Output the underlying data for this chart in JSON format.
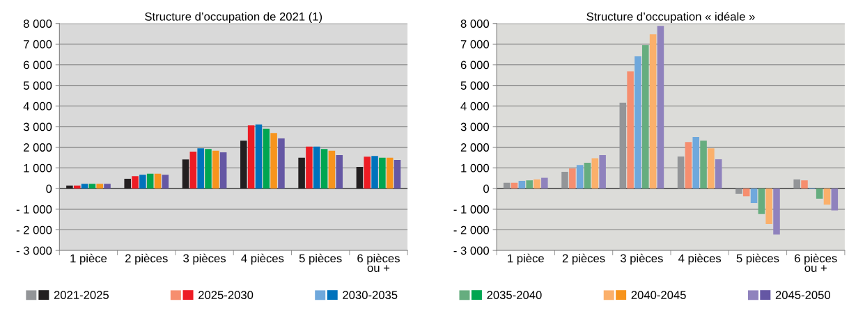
{
  "chart_data": [
    {
      "type": "bar",
      "title": "Structure d’occupation de 2021 (1)",
      "categories": [
        "1 pièce",
        "2 pièces",
        "3 pièces",
        "4 pièces",
        "5 pièces",
        "6 pièces\nou +"
      ],
      "series": [
        {
          "name": "2021-2025",
          "color": "#231f20",
          "values": [
            140,
            470,
            1410,
            2320,
            1490,
            1050
          ]
        },
        {
          "name": "2025-2030",
          "color": "#ed1c24",
          "values": [
            140,
            600,
            1790,
            3060,
            2030,
            1540
          ]
        },
        {
          "name": "2030-2035",
          "color": "#0072bc",
          "values": [
            230,
            670,
            1950,
            3100,
            2030,
            1580
          ]
        },
        {
          "name": "2035-2040",
          "color": "#00a651",
          "values": [
            230,
            720,
            1910,
            2900,
            1910,
            1490
          ]
        },
        {
          "name": "2040-2045",
          "color": "#f7941d",
          "values": [
            230,
            720,
            1830,
            2690,
            1830,
            1490
          ]
        },
        {
          "name": "2045-2050",
          "color": "#6557a4",
          "values": [
            230,
            670,
            1750,
            2430,
            1620,
            1380
          ]
        }
      ],
      "ylim": [
        -3000,
        8000
      ],
      "yticks": [
        {
          "value": -3000,
          "label": "- 3 000"
        },
        {
          "value": -2000,
          "label": "- 2 000"
        },
        {
          "value": -1000,
          "label": "- 1 000"
        },
        0,
        {
          "value": 1000,
          "label": "1 000"
        },
        {
          "value": 2000,
          "label": "2 000"
        },
        {
          "value": 3000,
          "label": "3 000"
        },
        {
          "value": 4000,
          "label": "4 000"
        },
        {
          "value": 5000,
          "label": "5 000"
        },
        {
          "value": 6000,
          "label": "6 000"
        },
        {
          "value": 7000,
          "label": "7 000"
        },
        {
          "value": 8000,
          "label": "8 000"
        }
      ],
      "grid": "y",
      "legend": "bottom"
    },
    {
      "type": "bar",
      "title": "Structure d’occupation « idéale »",
      "categories": [
        "1 pièce",
        "2 pièces",
        "3 pièces",
        "4 pièces",
        "5 pièces",
        "6 pièces\nou +"
      ],
      "series": [
        {
          "color": "#939598",
          "values": [
            280,
            810,
            4160,
            1550,
            -260,
            440
          ]
        },
        {
          "color": "#f68e6f",
          "values": [
            280,
            970,
            5680,
            2250,
            -380,
            400
          ]
        },
        {
          "color": "#6fa8dc",
          "values": [
            370,
            1140,
            6410,
            2500,
            -710,
            -30
          ]
        },
        {
          "color": "#66ad7f",
          "values": [
            400,
            1250,
            6950,
            2320,
            -1240,
            -500
          ]
        },
        {
          "color": "#fbb06b",
          "values": [
            440,
            1470,
            7480,
            1950,
            -1720,
            -780
          ]
        },
        {
          "color": "#8f82bd",
          "values": [
            520,
            1620,
            7880,
            1420,
            -2230,
            -1060
          ]
        }
      ],
      "ylim": [
        -3000,
        8000
      ],
      "yticks": [
        {
          "value": -3000,
          "label": "- 3 000"
        },
        {
          "value": -2000,
          "label": "- 2 000"
        },
        {
          "value": -1000,
          "label": "- 1 000"
        },
        0,
        {
          "value": 1000,
          "label": "1 000"
        },
        {
          "value": 2000,
          "label": "2 000"
        },
        {
          "value": 3000,
          "label": "3 000"
        },
        {
          "value": 4000,
          "label": "4 000"
        },
        {
          "value": 5000,
          "label": "5 000"
        },
        {
          "value": 6000,
          "label": "6 000"
        },
        {
          "value": 7000,
          "label": "7 000"
        },
        {
          "value": 8000,
          "label": "8 000"
        }
      ],
      "grid": "y"
    }
  ]
}
